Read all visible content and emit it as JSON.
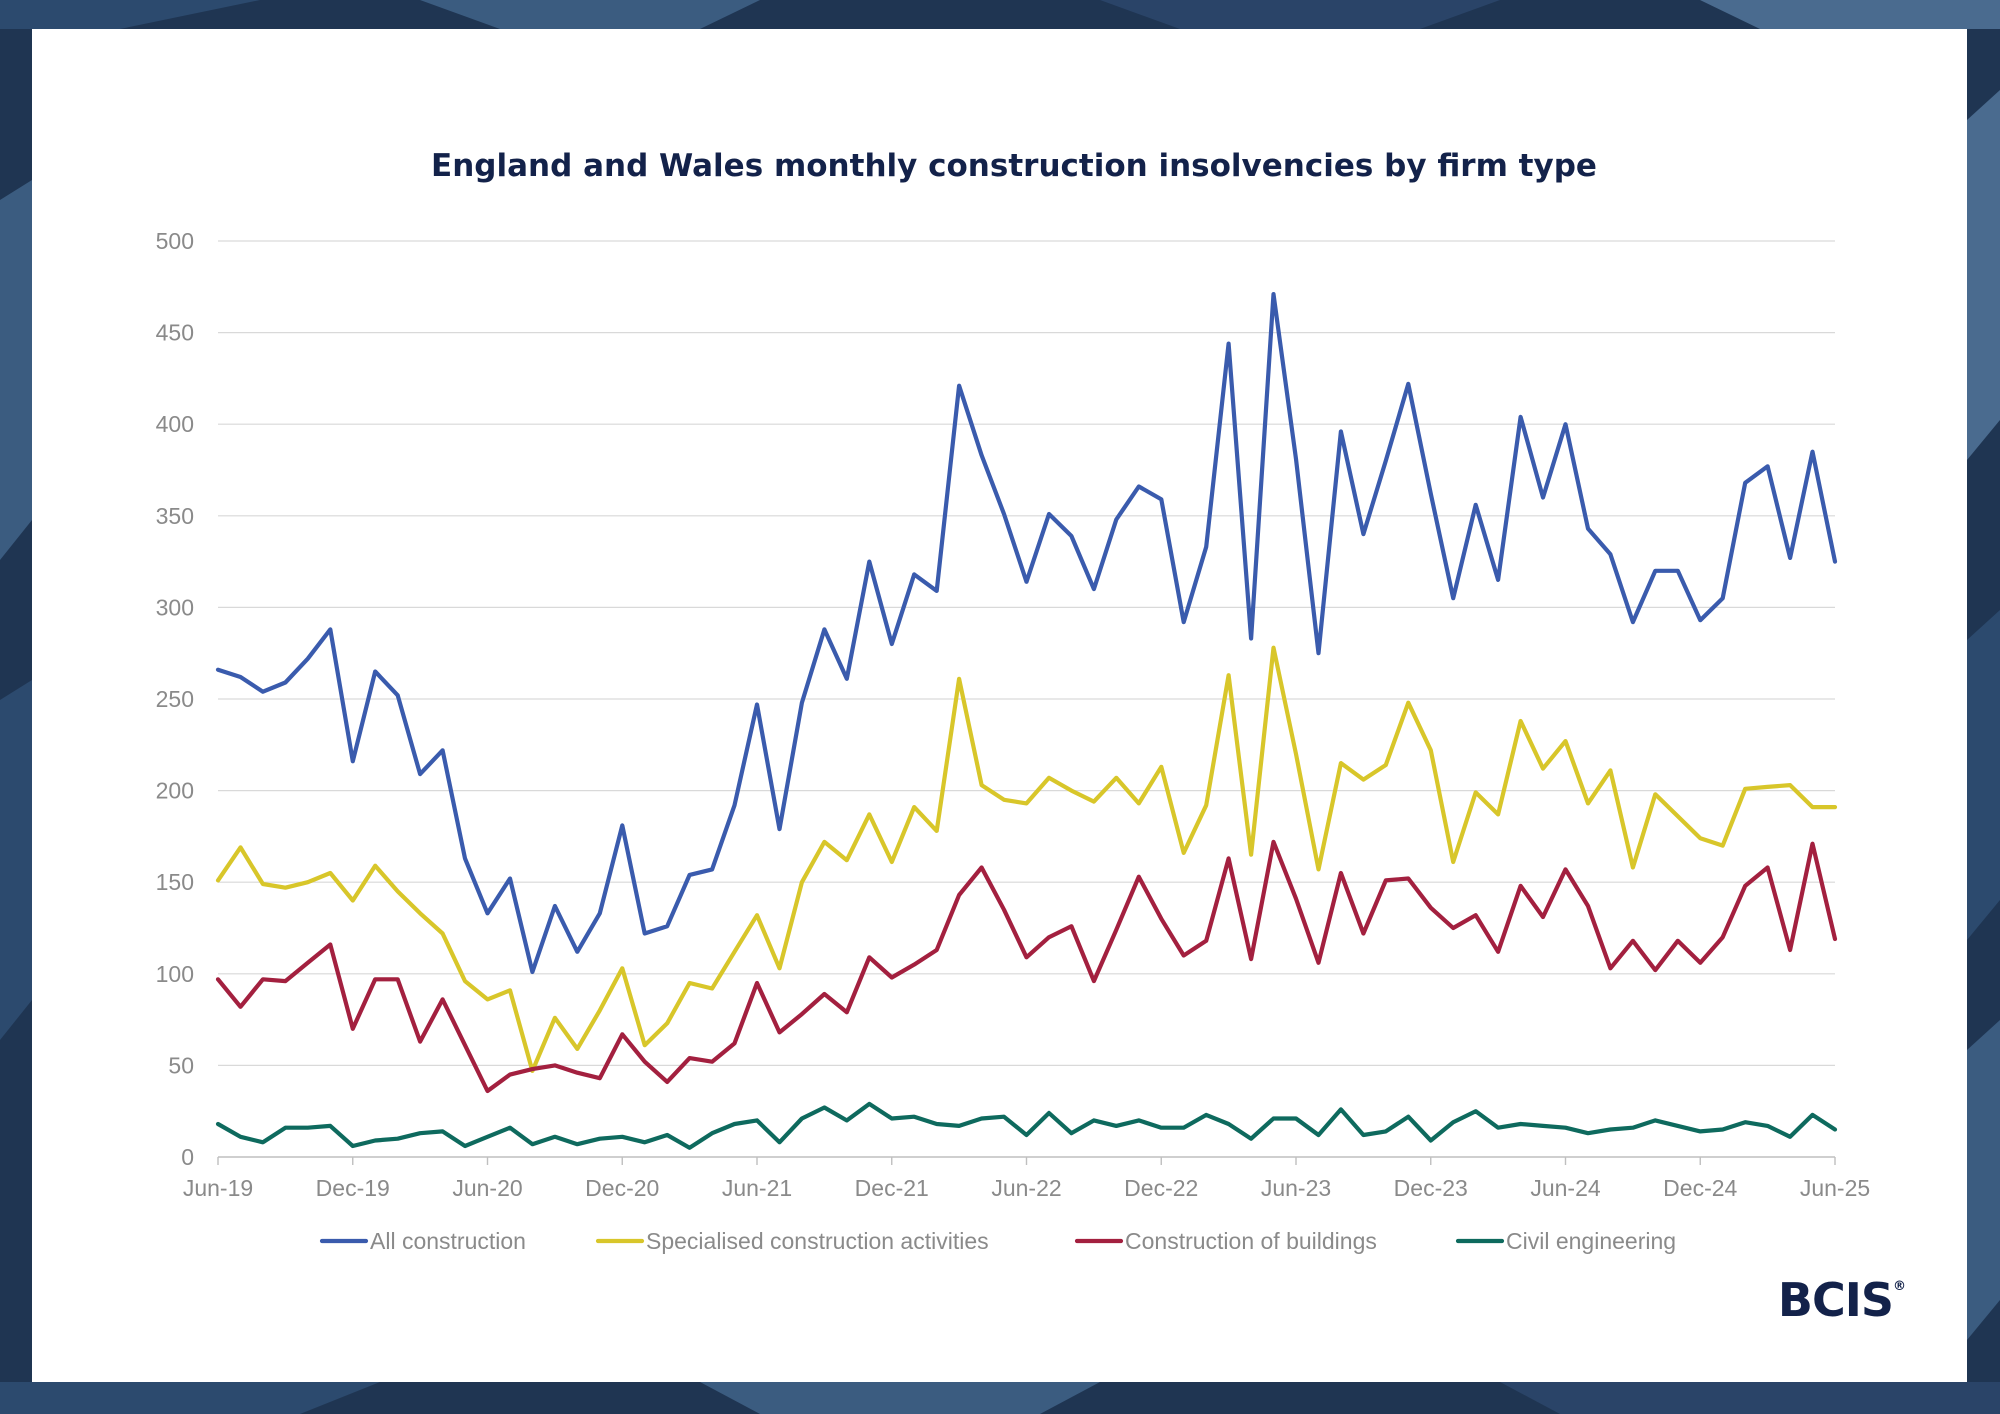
{
  "colors": {
    "background": "#1f3552",
    "card": "#ffffff",
    "title": "#13224a",
    "grid": "#d9d9d9",
    "axis": "#bfbfbf",
    "tick_text": "#8a8a8a"
  },
  "logo": {
    "text": "BCIS",
    "mark": "®"
  },
  "chart_data": {
    "type": "line",
    "title": "England and Wales monthly construction insolvencies by firm type",
    "xlabel": "",
    "ylabel": "",
    "ylim": [
      0,
      500
    ],
    "yticks": [
      0,
      50,
      100,
      150,
      200,
      250,
      300,
      350,
      400,
      450,
      500
    ],
    "x_start": "Jun-19",
    "x_end": "Jun-25",
    "x_ticks": [
      "Jun-19",
      "Dec-19",
      "Jun-20",
      "Dec-20",
      "Jun-21",
      "Dec-21",
      "Jun-22",
      "Dec-22",
      "Jun-23",
      "Dec-23",
      "Jun-24",
      "Dec-24",
      "Jun-25"
    ],
    "grid": true,
    "legend": "bottom",
    "series": [
      {
        "name": "All construction",
        "color": "#3a5bad",
        "values": [
          266,
          262,
          254,
          259,
          272,
          288,
          216,
          265,
          252,
          209,
          222,
          163,
          133,
          152,
          101,
          137,
          112,
          133,
          181,
          122,
          126,
          154,
          157,
          192,
          247,
          179,
          248,
          288,
          261,
          325,
          280,
          318,
          309,
          421,
          383,
          351,
          314,
          351,
          339,
          310,
          348,
          366,
          359,
          292,
          333,
          444,
          283,
          471,
          381,
          275,
          396,
          340,
          380,
          422,
          362,
          305,
          356,
          315,
          404,
          360,
          400,
          343,
          329,
          292,
          320,
          320,
          293,
          305,
          368,
          377,
          327,
          385,
          325
        ]
      },
      {
        "name": "Specialised construction activities",
        "color": "#d8c62a",
        "values": [
          151,
          169,
          149,
          147,
          150,
          155,
          140,
          159,
          145,
          133,
          122,
          96,
          86,
          91,
          47,
          76,
          59,
          80,
          103,
          61,
          73,
          95,
          92,
          112,
          132,
          103,
          150,
          172,
          162,
          187,
          161,
          191,
          178,
          261,
          203,
          195,
          193,
          207,
          200,
          194,
          207,
          193,
          213,
          166,
          192,
          263,
          165,
          278,
          220,
          157,
          215,
          206,
          214,
          248,
          222,
          161,
          199,
          187,
          238,
          212,
          227,
          193,
          211,
          158,
          198,
          186,
          174,
          170,
          201,
          202,
          203,
          191,
          191
        ]
      },
      {
        "name": "Construction of buildings",
        "color": "#a3203f",
        "values": [
          97,
          82,
          97,
          96,
          106,
          116,
          70,
          97,
          97,
          63,
          86,
          61,
          36,
          45,
          48,
          50,
          46,
          43,
          67,
          52,
          41,
          54,
          52,
          62,
          95,
          68,
          78,
          89,
          79,
          109,
          98,
          105,
          113,
          143,
          158,
          135,
          109,
          120,
          126,
          96,
          124,
          153,
          130,
          110,
          118,
          163,
          108,
          172,
          141,
          106,
          155,
          122,
          151,
          152,
          136,
          125,
          132,
          112,
          148,
          131,
          157,
          137,
          103,
          118,
          102,
          118,
          106,
          120,
          148,
          158,
          113,
          171,
          119
        ]
      },
      {
        "name": "Civil engineering",
        "color": "#0e6a5e",
        "values": [
          18,
          11,
          8,
          16,
          16,
          17,
          6,
          9,
          10,
          13,
          14,
          6,
          11,
          16,
          7,
          11,
          7,
          10,
          11,
          8,
          12,
          5,
          13,
          18,
          20,
          8,
          21,
          27,
          20,
          29,
          21,
          22,
          18,
          17,
          21,
          22,
          12,
          24,
          13,
          20,
          17,
          20,
          16,
          16,
          23,
          18,
          10,
          21,
          21,
          12,
          26,
          12,
          14,
          22,
          9,
          19,
          25,
          16,
          18,
          17,
          16,
          13,
          15,
          16,
          20,
          17,
          14,
          15,
          19,
          17,
          11,
          23,
          15
        ]
      }
    ]
  }
}
